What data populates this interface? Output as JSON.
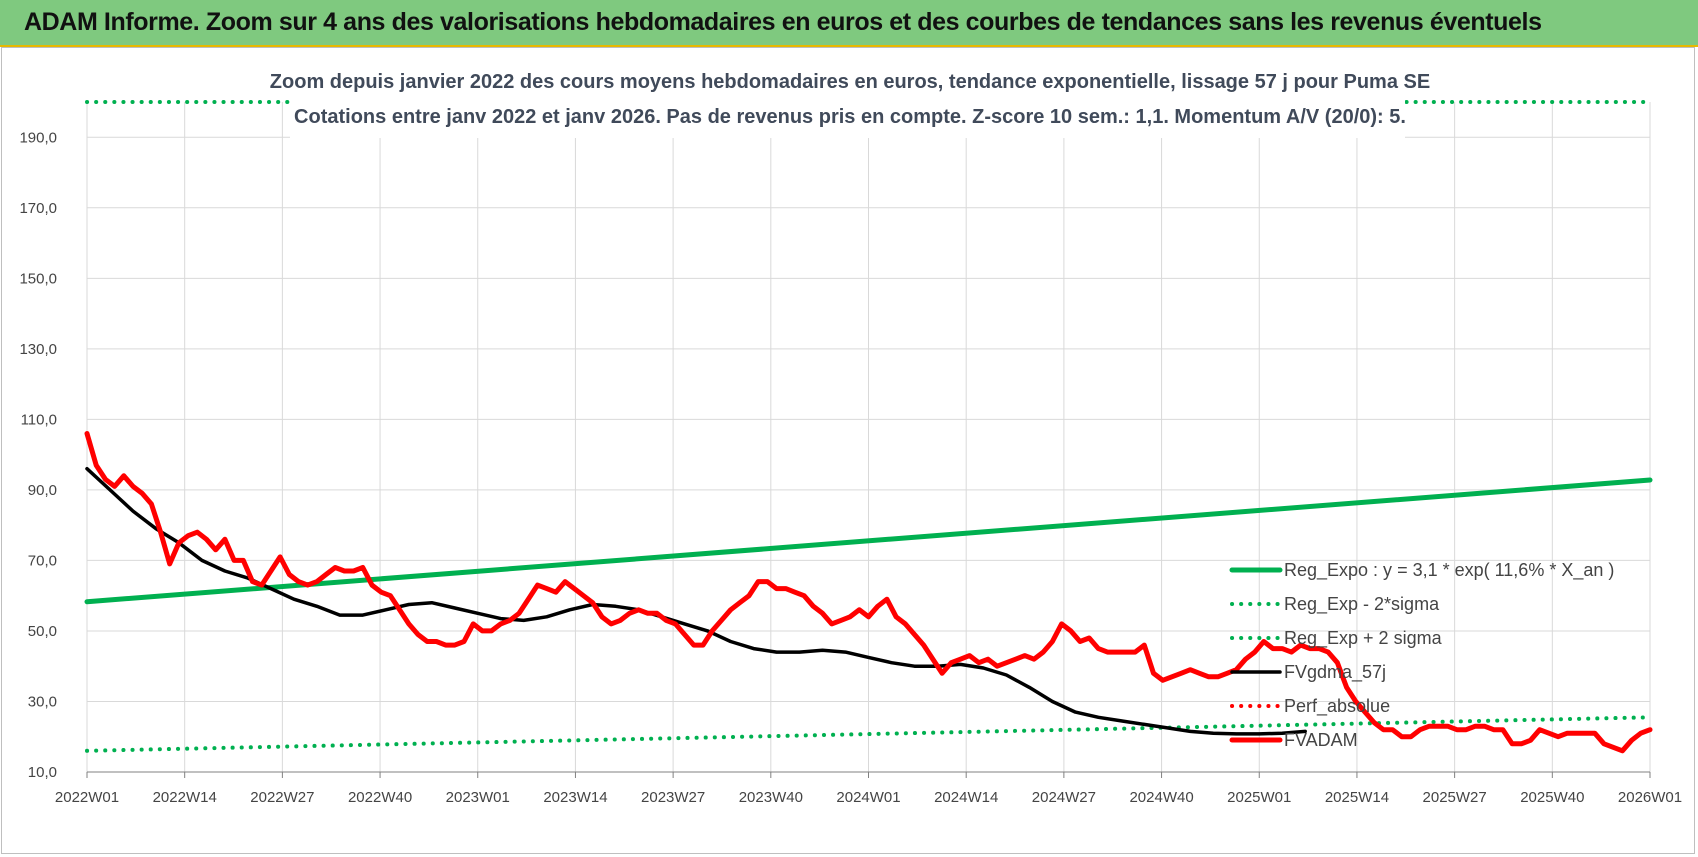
{
  "header": {
    "title": "ADAM Informe. Zoom sur 4 ans des valorisations hebdomadaires en euros et des courbes de tendances sans les revenus éventuels"
  },
  "colors": {
    "banner": "#7fc97f",
    "trend": "#00b050",
    "price": "#ff0000",
    "smooth": "#000000",
    "grid": "#d9d9d9"
  },
  "chart_data": {
    "type": "line",
    "title": "Zoom depuis janvier 2022 des cours moyens hebdomadaires en euros, tendance exponentielle, lissage 57 j pour Puma SE",
    "subtitle": "Cotations entre janv 2022 et janv 2026. Pas de revenus pris en compte. Z-score 10 sem.: 1,1. Momentum A/V (20/0): 5.",
    "x_ticks": [
      "2022W01",
      "2022W14",
      "2022W27",
      "2022W40",
      "2023W01",
      "2023W14",
      "2023W27",
      "2023W40",
      "2024W01",
      "2024W14",
      "2024W27",
      "2024W40",
      "2025W01",
      "2025W14",
      "2025W27",
      "2025W40",
      "2026W01"
    ],
    "y_ticks": [
      "10,0",
      "30,0",
      "50,0",
      "70,0",
      "90,0",
      "110,0",
      "130,0",
      "150,0",
      "170,0",
      "190,0"
    ],
    "ylim": [
      10,
      200
    ],
    "x_range_weeks": [
      0,
      208
    ],
    "grid": true,
    "legend_position": "right",
    "series": [
      {
        "name": "Reg_Expo : y = 3,1 * exp( 11,6% *  X_an )",
        "style": "solid-thick",
        "color": "#00b050",
        "points": [
          [
            0,
            58.3
          ],
          [
            208,
            92.8
          ]
        ]
      },
      {
        "name": "Reg_Exp - 2*sigma",
        "style": "dotted",
        "color": "#00b050",
        "points": [
          [
            0,
            16.0
          ],
          [
            208,
            25.5
          ]
        ]
      },
      {
        "name": "Reg_Exp + 2 sigma",
        "style": "dotted",
        "color": "#00b050",
        "points": [
          [
            0,
            200.0
          ],
          [
            208,
            200.0
          ]
        ]
      },
      {
        "name": "FVgdma_57j",
        "style": "solid",
        "color": "#000000",
        "points": [
          [
            0,
            96
          ],
          [
            5,
            90
          ],
          [
            10,
            84
          ],
          [
            15,
            79
          ],
          [
            20,
            75
          ],
          [
            25,
            70
          ],
          [
            30,
            67
          ],
          [
            35,
            65
          ],
          [
            40,
            62
          ],
          [
            45,
            59
          ],
          [
            50,
            57
          ],
          [
            55,
            54.5
          ],
          [
            60,
            54.5
          ],
          [
            65,
            56
          ],
          [
            70,
            57.5
          ],
          [
            75,
            58
          ],
          [
            80,
            56.5
          ],
          [
            85,
            55
          ],
          [
            90,
            53.5
          ],
          [
            95,
            53
          ],
          [
            100,
            54
          ],
          [
            105,
            56
          ],
          [
            110,
            57.5
          ],
          [
            115,
            57
          ],
          [
            120,
            56
          ],
          [
            125,
            54
          ],
          [
            130,
            52
          ],
          [
            135,
            50
          ],
          [
            140,
            47
          ],
          [
            145,
            45
          ],
          [
            150,
            44
          ],
          [
            155,
            44
          ],
          [
            160,
            44.5
          ],
          [
            165,
            44
          ],
          [
            170,
            42.5
          ],
          [
            175,
            41
          ],
          [
            180,
            40
          ],
          [
            185,
            40
          ],
          [
            190,
            40.5
          ],
          [
            195,
            39.5
          ],
          [
            200,
            37.5
          ],
          [
            205,
            34
          ],
          [
            210,
            30
          ],
          [
            215,
            27
          ],
          [
            220,
            25.5
          ],
          [
            225,
            24.5
          ],
          [
            230,
            23.5
          ],
          [
            235,
            22.5
          ],
          [
            240,
            21.5
          ],
          [
            245,
            21
          ],
          [
            250,
            20.8
          ],
          [
            255,
            20.8
          ],
          [
            260,
            21
          ],
          [
            265,
            21.5
          ]
        ]
      },
      {
        "name": "Perf_absolue",
        "style": "dotted",
        "color": "#ff0000",
        "points": []
      },
      {
        "name": "FVADAM",
        "style": "solid-thick",
        "color": "#ff0000",
        "points": [
          [
            0,
            106
          ],
          [
            2,
            97
          ],
          [
            4,
            93
          ],
          [
            6,
            91
          ],
          [
            8,
            94
          ],
          [
            10,
            91
          ],
          [
            12,
            89
          ],
          [
            14,
            86
          ],
          [
            16,
            78
          ],
          [
            18,
            69
          ],
          [
            20,
            75
          ],
          [
            22,
            77
          ],
          [
            24,
            78
          ],
          [
            26,
            76
          ],
          [
            28,
            73
          ],
          [
            30,
            76
          ],
          [
            32,
            70
          ],
          [
            34,
            70
          ],
          [
            36,
            64
          ],
          [
            38,
            63
          ],
          [
            40,
            67
          ],
          [
            42,
            71
          ],
          [
            44,
            66
          ],
          [
            46,
            64
          ],
          [
            48,
            63
          ],
          [
            50,
            64
          ],
          [
            52,
            66
          ],
          [
            54,
            68
          ],
          [
            56,
            67
          ],
          [
            58,
            67
          ],
          [
            60,
            68
          ],
          [
            62,
            63
          ],
          [
            64,
            61
          ],
          [
            66,
            60
          ],
          [
            68,
            56
          ],
          [
            70,
            52
          ],
          [
            72,
            49
          ],
          [
            74,
            47
          ],
          [
            76,
            47
          ],
          [
            78,
            46
          ],
          [
            80,
            46
          ],
          [
            82,
            47
          ],
          [
            84,
            52
          ],
          [
            86,
            50
          ],
          [
            88,
            50
          ],
          [
            90,
            52
          ],
          [
            92,
            53
          ],
          [
            94,
            55
          ],
          [
            96,
            59
          ],
          [
            98,
            63
          ],
          [
            100,
            62
          ],
          [
            102,
            61
          ],
          [
            104,
            64
          ],
          [
            106,
            62
          ],
          [
            108,
            60
          ],
          [
            110,
            58
          ],
          [
            112,
            54
          ],
          [
            114,
            52
          ],
          [
            116,
            53
          ],
          [
            118,
            55
          ],
          [
            120,
            56
          ],
          [
            122,
            55
          ],
          [
            124,
            55
          ],
          [
            126,
            53
          ],
          [
            128,
            52
          ],
          [
            130,
            49
          ],
          [
            132,
            46
          ],
          [
            134,
            46
          ],
          [
            136,
            50
          ],
          [
            138,
            53
          ],
          [
            140,
            56
          ],
          [
            142,
            58
          ],
          [
            144,
            60
          ],
          [
            146,
            64
          ],
          [
            148,
            64
          ],
          [
            150,
            62
          ],
          [
            152,
            62
          ],
          [
            154,
            61
          ],
          [
            156,
            60
          ],
          [
            158,
            57
          ],
          [
            160,
            55
          ],
          [
            162,
            52
          ],
          [
            164,
            53
          ],
          [
            166,
            54
          ],
          [
            168,
            56
          ],
          [
            170,
            54
          ],
          [
            172,
            57
          ],
          [
            174,
            59
          ],
          [
            176,
            54
          ],
          [
            178,
            52
          ],
          [
            180,
            49
          ],
          [
            182,
            46
          ],
          [
            184,
            42
          ],
          [
            186,
            38
          ],
          [
            188,
            41
          ],
          [
            190,
            42
          ],
          [
            192,
            43
          ],
          [
            194,
            41
          ],
          [
            196,
            42
          ],
          [
            198,
            40
          ],
          [
            200,
            41
          ],
          [
            202,
            42
          ],
          [
            204,
            43
          ],
          [
            206,
            42
          ],
          [
            208,
            44
          ],
          [
            210,
            47
          ],
          [
            212,
            52
          ],
          [
            214,
            50
          ],
          [
            216,
            47
          ],
          [
            218,
            48
          ],
          [
            220,
            45
          ],
          [
            222,
            44
          ],
          [
            224,
            44
          ],
          [
            226,
            44
          ],
          [
            228,
            44
          ],
          [
            230,
            46
          ],
          [
            232,
            38
          ],
          [
            234,
            36
          ],
          [
            236,
            37
          ],
          [
            238,
            38
          ],
          [
            240,
            39
          ],
          [
            242,
            38
          ],
          [
            244,
            37
          ],
          [
            246,
            37
          ],
          [
            248,
            38
          ],
          [
            250,
            39
          ],
          [
            252,
            42
          ],
          [
            254,
            44
          ],
          [
            256,
            47
          ],
          [
            258,
            45
          ],
          [
            260,
            45
          ],
          [
            262,
            44
          ],
          [
            264,
            46
          ],
          [
            266,
            45
          ],
          [
            268,
            45
          ],
          [
            270,
            44
          ],
          [
            272,
            41
          ],
          [
            274,
            34
          ],
          [
            276,
            30
          ],
          [
            278,
            27
          ],
          [
            280,
            24
          ],
          [
            282,
            22
          ],
          [
            284,
            22
          ],
          [
            286,
            20
          ],
          [
            288,
            20
          ],
          [
            290,
            22
          ],
          [
            292,
            23
          ],
          [
            294,
            23
          ],
          [
            296,
            23
          ],
          [
            298,
            22
          ],
          [
            300,
            22
          ],
          [
            302,
            23
          ],
          [
            304,
            23
          ],
          [
            306,
            22
          ],
          [
            308,
            22
          ],
          [
            310,
            18
          ],
          [
            312,
            18
          ],
          [
            314,
            19
          ],
          [
            316,
            22
          ],
          [
            318,
            21
          ],
          [
            320,
            20
          ],
          [
            322,
            21
          ],
          [
            324,
            21
          ],
          [
            326,
            21
          ],
          [
            328,
            21
          ],
          [
            330,
            18
          ],
          [
            332,
            17
          ],
          [
            334,
            16
          ],
          [
            336,
            19
          ],
          [
            338,
            21
          ],
          [
            340,
            22
          ]
        ]
      }
    ]
  }
}
